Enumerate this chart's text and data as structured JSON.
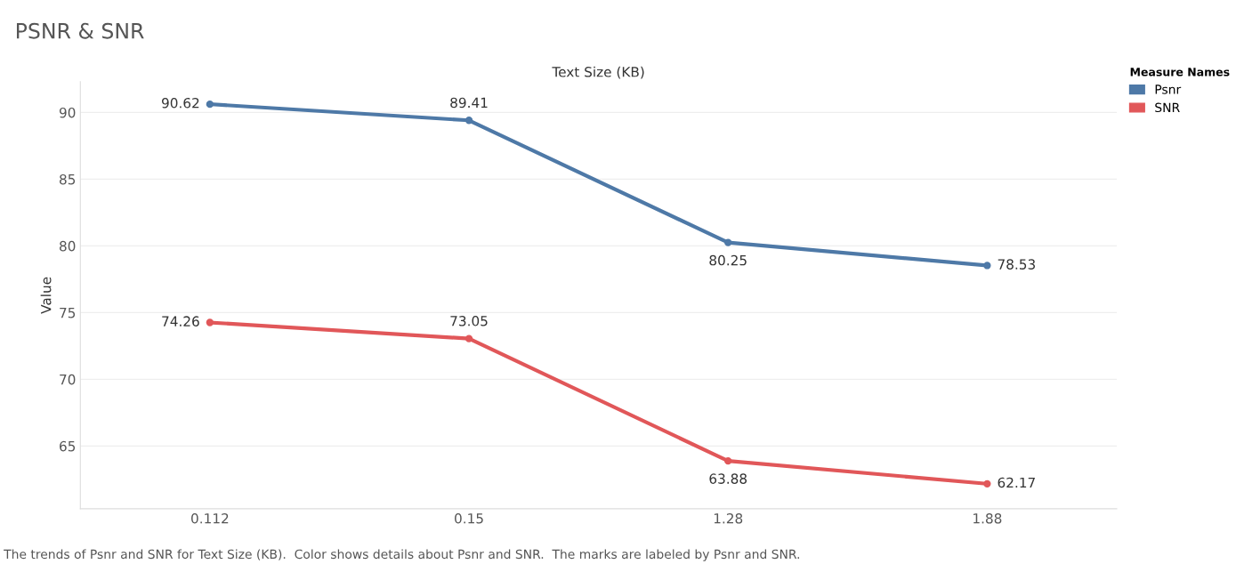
{
  "chart_data": {
    "type": "line",
    "title": "PSNR & SNR",
    "xlabel": "Text Size (KB)",
    "ylabel": "Value",
    "legend_title": "Measure Names",
    "categories": [
      "0.112",
      "0.15",
      "1.28",
      "1.88"
    ],
    "series": [
      {
        "name": "Psnr",
        "color": "#4e79a7",
        "values": [
          90.62,
          89.41,
          80.25,
          78.53
        ]
      },
      {
        "name": "SNR",
        "color": "#e15759",
        "values": [
          74.26,
          73.05,
          63.88,
          62.17
        ]
      }
    ],
    "ylim": [
      60.3,
      92.3
    ],
    "yticks": [
      65,
      70,
      75,
      80,
      85,
      90
    ],
    "grid": "y",
    "legend": "right",
    "marker": "circle",
    "line_style": "solid",
    "data_labels": true,
    "annotations": [
      "The trends of Psnr and SNR for Text Size (KB).  Color shows details about Psnr and SNR.  The marks are labeled by Psnr and SNR."
    ]
  }
}
